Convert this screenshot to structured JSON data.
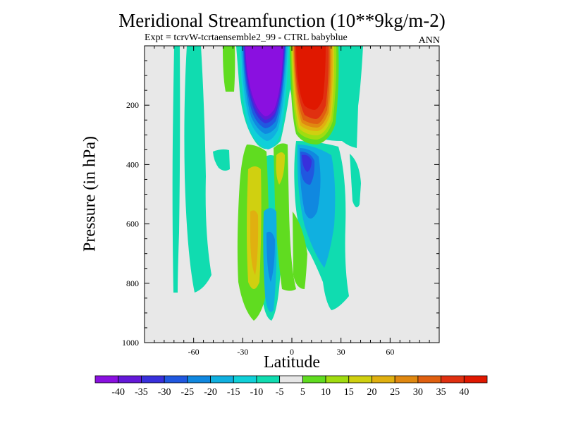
{
  "chart_data": {
    "type": "contour",
    "title": "Meridional Streamfunction (10**9kg/m-2)",
    "subtitle": "Expt = tcrvW-tcrtaensemble2_99 - CTRL babyblue",
    "season": "ANN",
    "xlabel": "Latitude",
    "ylabel": "Pressure (in hPa)",
    "xlim": [
      -90,
      90
    ],
    "ylim": [
      1000,
      0
    ],
    "x_ticks": [
      -60,
      -30,
      0,
      30,
      60
    ],
    "x_tick_labels": [
      "-60",
      "-30",
      "0",
      "30",
      "60"
    ],
    "y_ticks": [
      200,
      400,
      600,
      800,
      1000
    ],
    "y_tick_labels": [
      "200",
      "400",
      "600",
      "800",
      "1000"
    ],
    "background_color": "#e8e8e8",
    "colorbar": {
      "levels": [
        -40,
        -35,
        -30,
        -25,
        -20,
        -15,
        -10,
        -5,
        5,
        10,
        15,
        20,
        25,
        30,
        35,
        40
      ],
      "level_labels": [
        "-40",
        "-35",
        "-30",
        "-25",
        "-20",
        "-15",
        "-10",
        "-5",
        "5",
        "10",
        "15",
        "20",
        "25",
        "30",
        "35",
        "40"
      ],
      "colors": [
        "#8a10e0",
        "#6418d8",
        "#3830dc",
        "#2058e0",
        "#1088e0",
        "#10b0e0",
        "#10d0d8",
        "#10dcb0",
        "#e6e6e6",
        "#60dc20",
        "#a0dc10",
        "#d0d010",
        "#e0b010",
        "#e08810",
        "#e06010",
        "#e03010",
        "#e01800"
      ]
    },
    "contour_regions": [
      {
        "name": "sh-upper-negative-cell",
        "level": -40,
        "lat_range": [
          -28,
          -2
        ],
        "p_range": [
          0,
          300
        ]
      },
      {
        "name": "nh-upper-positive-cell",
        "level": 40,
        "lat_range": [
          2,
          23
        ],
        "p_range": [
          0,
          250
        ]
      },
      {
        "name": "nh-mid-negative-cell",
        "level": -30,
        "lat_range": [
          3,
          22
        ],
        "p_range": [
          320,
          520
        ]
      },
      {
        "name": "sh-mid-positive-cell",
        "level": 25,
        "lat_range": [
          -32,
          -10
        ],
        "p_range": [
          340,
          930
        ]
      },
      {
        "name": "sh-lower-negative-cell",
        "level": -20,
        "lat_range": [
          -17,
          -7
        ],
        "p_range": [
          540,
          930
        ]
      },
      {
        "name": "sh-high-lat-negative",
        "level": -10,
        "lat_range": [
          -68,
          -51
        ],
        "p_range": [
          0,
          840
        ]
      },
      {
        "name": "nh-lower-positive",
        "level": 10,
        "lat_range": [
          3,
          14
        ],
        "p_range": [
          500,
          870
        ]
      }
    ]
  }
}
